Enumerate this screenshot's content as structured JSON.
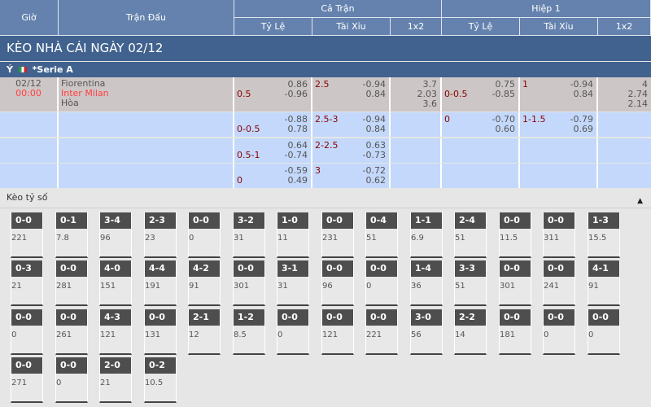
{
  "header": {
    "gio": "Giờ",
    "tran_dau": "Trận Đấu",
    "ca_tran": "Cả Trận",
    "hiep1": "Hiệp 1",
    "ty_le": "Tỷ Lệ",
    "tai_xiu": "Tài Xỉu",
    "x12": "1x2"
  },
  "title": "KÈO NHÀ CÁI NGÀY 02/12",
  "league": {
    "country": "Ý",
    "name": "*Serie A",
    "flag": "italy-flag"
  },
  "match": {
    "date": "02/12",
    "time": "00:00",
    "home": "Fiorentina",
    "away": "Inter Milan",
    "draw": "Hòa",
    "ft_hdp": {
      "line": "0.5",
      "home": "0.86",
      "away": "-0.96"
    },
    "ft_ou": {
      "line": "2.5",
      "over": "-0.94",
      "under": "0.84"
    },
    "ft_1x2": {
      "home": "3.7",
      "away": "2.03",
      "draw": "3.6"
    },
    "h1_hdp": {
      "line": "0-0.5",
      "home": "0.75",
      "away": "-0.85"
    },
    "h1_ou": {
      "line": "1",
      "over": "-0.94",
      "under": "0.84"
    },
    "h1_1x2": {
      "home": "4",
      "away": "2.74",
      "draw": "2.14"
    }
  },
  "sub_rows": [
    {
      "ft_hdp": {
        "line": "0-0.5",
        "home": "-0.88",
        "away": "0.78"
      },
      "ft_ou": {
        "line": "2.5-3",
        "over": "-0.94",
        "under": "0.84"
      },
      "h1_hdp": {
        "line": "0",
        "home": "-0.70",
        "away": "0.60"
      },
      "h1_ou": {
        "line": "1-1.5",
        "over": "-0.79",
        "under": "0.69"
      }
    },
    {
      "ft_hdp": {
        "line": "0.5-1",
        "home": "0.64",
        "away": "-0.74"
      },
      "ft_ou": {
        "line": "2-2.5",
        "over": "0.63",
        "under": "-0.73"
      }
    },
    {
      "ft_hdp": {
        "line": "0",
        "home": "-0.59",
        "away": "0.49"
      },
      "ft_ou": {
        "line": "3",
        "over": "-0.72",
        "under": "0.62"
      }
    }
  ],
  "correct_score": {
    "title": "Kèo tỷ số",
    "collapse_icon": "caret-up-icon",
    "cards": [
      [
        "0-0",
        "221"
      ],
      [
        "0-1",
        "7.8"
      ],
      [
        "3-4",
        "96"
      ],
      [
        "2-3",
        "23"
      ],
      [
        "0-0",
        "0"
      ],
      [
        "3-2",
        "31"
      ],
      [
        "1-0",
        "11"
      ],
      [
        "0-0",
        "231"
      ],
      [
        "0-4",
        "51"
      ],
      [
        "1-1",
        "6.9"
      ],
      [
        "2-4",
        "51"
      ],
      [
        "0-0",
        "11.5"
      ],
      [
        "0-0",
        "311"
      ],
      [
        "1-3",
        "15.5"
      ],
      [
        "0-3",
        "21"
      ],
      [
        "0-0",
        "281"
      ],
      [
        "4-0",
        "151"
      ],
      [
        "4-4",
        "191"
      ],
      [
        "4-2",
        "91"
      ],
      [
        "0-0",
        "301"
      ],
      [
        "3-1",
        "31"
      ],
      [
        "0-0",
        "96"
      ],
      [
        "0-0",
        "0"
      ],
      [
        "1-4",
        "36"
      ],
      [
        "3-3",
        "51"
      ],
      [
        "0-0",
        "301"
      ],
      [
        "0-0",
        "241"
      ],
      [
        "4-1",
        "91"
      ],
      [
        "0-0",
        "0"
      ],
      [
        "0-0",
        "261"
      ],
      [
        "4-3",
        "121"
      ],
      [
        "0-0",
        "131"
      ],
      [
        "2-1",
        "12"
      ],
      [
        "1-2",
        "8.5"
      ],
      [
        "0-0",
        "0"
      ],
      [
        "0-0",
        "121"
      ],
      [
        "0-0",
        "221"
      ],
      [
        "3-0",
        "56"
      ],
      [
        "2-2",
        "14"
      ],
      [
        "0-0",
        "181"
      ],
      [
        "0-0",
        "0"
      ],
      [
        "0-0",
        "0"
      ],
      [
        "0-0",
        "271"
      ],
      [
        "0-0",
        "0"
      ],
      [
        "2-0",
        "21"
      ],
      [
        "0-2",
        "10.5"
      ]
    ]
  }
}
